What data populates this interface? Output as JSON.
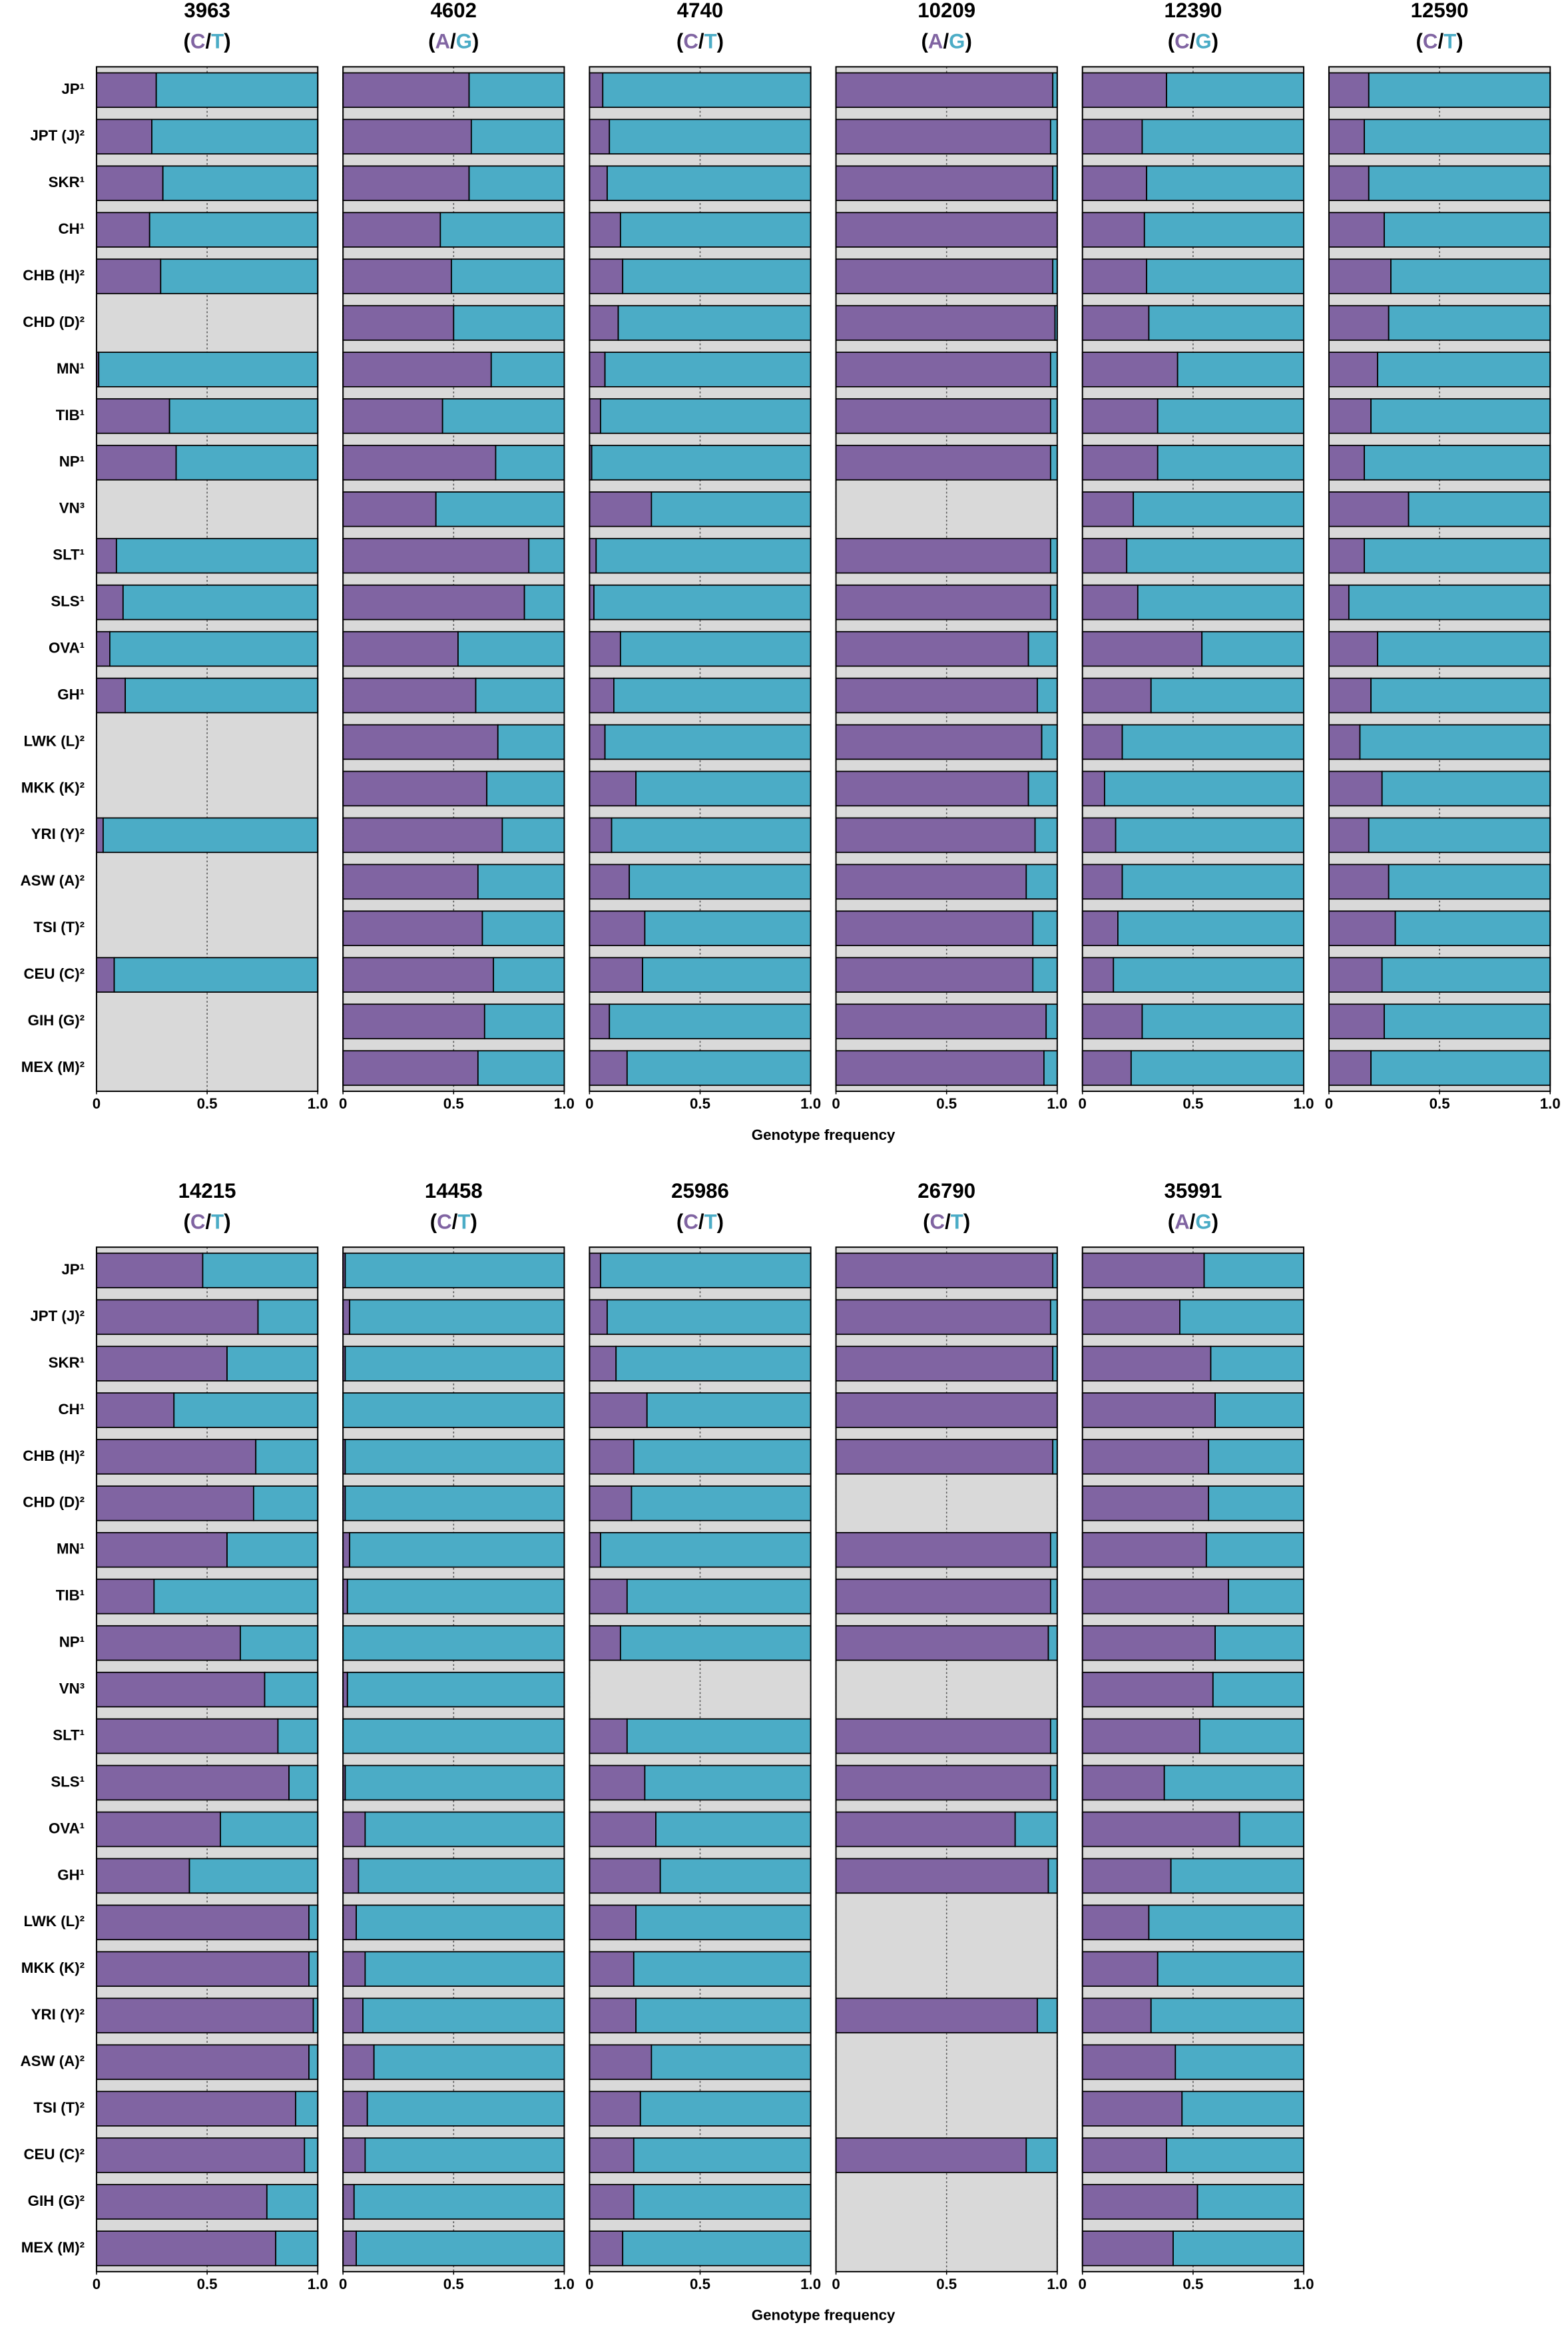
{
  "chart_data": [
    {
      "type": "bar",
      "title": "3963",
      "allele_brackets": [
        "(",
        "/",
        ")"
      ],
      "xlim": [
        0,
        1
      ],
      "xticks": [
        0,
        0.5,
        {
          "value": 1,
          "label": "1.0"
        }
      ],
      "grid": true,
      "background": "#d9d9d9",
      "categories": [
        "JP¹",
        "JPT (J)²",
        "SKR¹",
        "CH¹",
        "CHB (H)²",
        "CHD (D)²",
        "MN¹",
        "TIB¹",
        "NP¹",
        "VN³",
        "SLT¹",
        "SLS¹",
        "OVA¹",
        "GH¹",
        "LWK (L)²",
        "MKK (K)²",
        "YRI (Y)²",
        "ASW (A)²",
        "TSI (T)²",
        "CEU (C)²",
        "GIH (G)²",
        "MEX (M)²"
      ],
      "xlabel": "Genotype frequency",
      "series": [
        {
          "name": "C",
          "color": "#8064a2",
          "values": [
            0.27,
            0.25,
            0.3,
            0.24,
            0.29,
            null,
            0.01,
            0.33,
            0.36,
            null,
            0.09,
            0.12,
            0.06,
            0.13,
            null,
            null,
            0.03,
            null,
            null,
            0.08,
            null,
            null
          ]
        },
        {
          "name": "T",
          "color": "#4bacc6",
          "values": [
            0.73,
            0.75,
            0.7,
            0.76,
            0.71,
            null,
            0.99,
            0.67,
            0.64,
            null,
            0.91,
            0.88,
            0.94,
            0.87,
            null,
            null,
            0.97,
            null,
            null,
            0.92,
            null,
            null
          ]
        }
      ]
    },
    {
      "type": "bar",
      "title": "4602",
      "allele_brackets": [
        "(",
        "/",
        ")"
      ],
      "xlim": [
        0,
        1
      ],
      "xticks": [
        0,
        0.5,
        {
          "value": 1,
          "label": "1.0"
        }
      ],
      "grid": true,
      "background": "#d9d9d9",
      "series": [
        {
          "name": "A",
          "color": "#8064a2",
          "values": [
            0.57,
            0.58,
            0.57,
            0.44,
            0.49,
            0.5,
            0.67,
            0.45,
            0.69,
            0.42,
            0.84,
            0.82,
            0.52,
            0.6,
            0.7,
            0.65,
            0.72,
            0.61,
            0.63,
            0.68,
            0.64,
            0.61
          ]
        },
        {
          "name": "G",
          "color": "#4bacc6",
          "values": [
            0.43,
            0.42,
            0.43,
            0.56,
            0.51,
            0.5,
            0.33,
            0.55,
            0.31,
            0.58,
            0.16,
            0.18,
            0.48,
            0.4,
            0.3,
            0.35,
            0.28,
            0.39,
            0.37,
            0.32,
            0.36,
            0.39
          ]
        }
      ]
    },
    {
      "type": "bar",
      "title": "4740",
      "allele_brackets": [
        "(",
        "/",
        ")"
      ],
      "xlim": [
        0,
        1
      ],
      "xticks": [
        0,
        0.5,
        {
          "value": 1,
          "label": "1.0"
        }
      ],
      "grid": true,
      "background": "#d9d9d9",
      "series": [
        {
          "name": "C",
          "color": "#8064a2",
          "values": [
            0.06,
            0.09,
            0.08,
            0.14,
            0.15,
            0.13,
            0.07,
            0.05,
            0.01,
            0.28,
            0.03,
            0.02,
            0.14,
            0.11,
            0.07,
            0.21,
            0.1,
            0.18,
            0.25,
            0.24,
            0.09,
            0.17
          ]
        },
        {
          "name": "T",
          "color": "#4bacc6",
          "values": [
            0.94,
            0.91,
            0.92,
            0.86,
            0.85,
            0.87,
            0.93,
            0.95,
            0.99,
            0.72,
            0.97,
            0.98,
            0.86,
            0.89,
            0.93,
            0.79,
            0.9,
            0.82,
            0.75,
            0.76,
            0.91,
            0.83
          ]
        }
      ]
    },
    {
      "type": "bar",
      "title": "10209",
      "allele_brackets": [
        "(",
        "/",
        ")"
      ],
      "xlim": [
        0,
        1
      ],
      "xticks": [
        0,
        0.5,
        {
          "value": 1,
          "label": "1.0"
        }
      ],
      "grid": true,
      "background": "#d9d9d9",
      "series": [
        {
          "name": "A",
          "color": "#8064a2",
          "values": [
            0.98,
            0.97,
            0.98,
            1,
            0.98,
            0.99,
            0.97,
            0.97,
            0.97,
            null,
            0.97,
            0.97,
            0.87,
            0.91,
            0.93,
            0.87,
            0.9,
            0.86,
            0.89,
            0.89,
            0.95,
            0.94
          ]
        },
        {
          "name": "G",
          "color": "#4bacc6",
          "values": [
            0.02,
            0.03,
            0.02,
            0,
            0.02,
            0.01,
            0.03,
            0.03,
            0.03,
            null,
            0.03,
            0.03,
            0.13,
            0.09,
            0.07,
            0.13,
            0.1,
            0.14,
            0.11,
            0.11,
            0.05,
            0.06
          ]
        }
      ]
    },
    {
      "type": "bar",
      "title": "12390",
      "allele_brackets": [
        "(",
        "/",
        ")"
      ],
      "xlim": [
        0,
        1
      ],
      "xticks": [
        0,
        0.5,
        {
          "value": 1,
          "label": "1.0"
        }
      ],
      "grid": true,
      "background": "#d9d9d9",
      "series": [
        {
          "name": "C",
          "color": "#8064a2",
          "values": [
            0.38,
            0.27,
            0.29,
            0.28,
            0.29,
            0.3,
            0.43,
            0.34,
            0.34,
            0.23,
            0.2,
            0.25,
            0.54,
            0.31,
            0.18,
            0.1,
            0.15,
            0.18,
            0.16,
            0.14,
            0.27,
            0.22
          ]
        },
        {
          "name": "G",
          "color": "#4bacc6",
          "values": [
            0.62,
            0.73,
            0.71,
            0.72,
            0.71,
            0.7,
            0.57,
            0.66,
            0.66,
            0.77,
            0.8,
            0.75,
            0.46,
            0.69,
            0.82,
            0.9,
            0.85,
            0.82,
            0.84,
            0.86,
            0.73,
            0.78
          ]
        }
      ]
    },
    {
      "type": "bar",
      "title": "12590",
      "allele_brackets": [
        "(",
        "/",
        ")"
      ],
      "xlim": [
        0,
        1
      ],
      "xticks": [
        0,
        0.5,
        {
          "value": 1,
          "label": "1.0"
        }
      ],
      "grid": true,
      "background": "#d9d9d9",
      "series": [
        {
          "name": "C",
          "color": "#8064a2",
          "values": [
            0.18,
            0.16,
            0.18,
            0.25,
            0.28,
            0.27,
            0.22,
            0.19,
            0.16,
            0.36,
            0.16,
            0.09,
            0.22,
            0.19,
            0.14,
            0.24,
            0.18,
            0.27,
            0.3,
            0.24,
            0.25,
            0.19
          ]
        },
        {
          "name": "T",
          "color": "#4bacc6",
          "values": [
            0.82,
            0.84,
            0.82,
            0.75,
            0.72,
            0.73,
            0.78,
            0.81,
            0.84,
            0.64,
            0.84,
            0.91,
            0.78,
            0.81,
            0.86,
            0.76,
            0.82,
            0.73,
            0.7,
            0.76,
            0.75,
            0.81
          ]
        }
      ]
    },
    {
      "type": "bar",
      "title": "14215",
      "allele_brackets": [
        "(",
        "/",
        ")"
      ],
      "xlim": [
        0,
        1
      ],
      "xticks": [
        0,
        0.5,
        {
          "value": 1,
          "label": "1.0"
        }
      ],
      "grid": true,
      "background": "#d9d9d9",
      "categories": [
        "JP¹",
        "JPT (J)²",
        "SKR¹",
        "CH¹",
        "CHB (H)²",
        "CHD (D)²",
        "MN¹",
        "TIB¹",
        "NP¹",
        "VN³",
        "SLT¹",
        "SLS¹",
        "OVA¹",
        "GH¹",
        "LWK (L)²",
        "MKK (K)²",
        "YRI (Y)²",
        "ASW (A)²",
        "TSI (T)²",
        "CEU (C)²",
        "GIH (G)²",
        "MEX (M)²"
      ],
      "xlabel": "Genotype frequency",
      "series": [
        {
          "name": "C",
          "color": "#8064a2",
          "values": [
            0.48,
            0.73,
            0.59,
            0.35,
            0.72,
            0.71,
            0.59,
            0.26,
            0.65,
            0.76,
            0.82,
            0.87,
            0.56,
            0.42,
            0.96,
            0.96,
            0.98,
            0.96,
            0.9,
            0.94,
            0.77,
            0.81
          ]
        },
        {
          "name": "T",
          "color": "#4bacc6",
          "values": [
            0.52,
            0.27,
            0.41,
            0.65,
            0.28,
            0.29,
            0.41,
            0.74,
            0.35,
            0.24,
            0.18,
            0.13,
            0.44,
            0.58,
            0.04,
            0.04,
            0.02,
            0.04,
            0.1,
            0.06,
            0.23,
            0.19
          ]
        }
      ]
    },
    {
      "type": "bar",
      "title": "14458",
      "allele_brackets": [
        "(",
        "/",
        ")"
      ],
      "xlim": [
        0,
        1
      ],
      "xticks": [
        0,
        0.5,
        {
          "value": 1,
          "label": "1.0"
        }
      ],
      "grid": true,
      "background": "#d9d9d9",
      "series": [
        {
          "name": "C",
          "color": "#8064a2",
          "values": [
            0.01,
            0.03,
            0.01,
            0,
            0.01,
            0.01,
            0.03,
            0.02,
            0,
            0.02,
            0,
            0.01,
            0.1,
            0.07,
            0.06,
            0.1,
            0.09,
            0.14,
            0.11,
            0.1,
            0.05,
            0.06
          ]
        },
        {
          "name": "T",
          "color": "#4bacc6",
          "values": [
            0.99,
            0.97,
            0.99,
            1,
            0.99,
            0.99,
            0.97,
            0.98,
            1,
            0.98,
            1,
            0.99,
            0.9,
            0.93,
            0.94,
            0.9,
            0.91,
            0.86,
            0.89,
            0.9,
            0.95,
            0.94
          ]
        }
      ]
    },
    {
      "type": "bar",
      "title": "25986",
      "allele_brackets": [
        "(",
        "/",
        ")"
      ],
      "xlim": [
        0,
        1
      ],
      "xticks": [
        0,
        0.5,
        {
          "value": 1,
          "label": "1.0"
        }
      ],
      "grid": true,
      "background": "#d9d9d9",
      "series": [
        {
          "name": "C",
          "color": "#8064a2",
          "values": [
            0.05,
            0.08,
            0.12,
            0.26,
            0.2,
            0.19,
            0.05,
            0.17,
            0.14,
            null,
            0.17,
            0.25,
            0.3,
            0.32,
            0.21,
            0.2,
            0.21,
            0.28,
            0.23,
            0.2,
            0.2,
            0.15
          ]
        },
        {
          "name": "T",
          "color": "#4bacc6",
          "values": [
            0.95,
            0.92,
            0.88,
            0.74,
            0.8,
            0.81,
            0.95,
            0.83,
            0.86,
            null,
            0.83,
            0.75,
            0.7,
            0.68,
            0.79,
            0.8,
            0.79,
            0.72,
            0.77,
            0.8,
            0.8,
            0.85
          ]
        }
      ]
    },
    {
      "type": "bar",
      "title": "26790",
      "allele_brackets": [
        "(",
        "/",
        ")"
      ],
      "xlim": [
        0,
        1
      ],
      "xticks": [
        0,
        0.5,
        {
          "value": 1,
          "label": "1.0"
        }
      ],
      "grid": true,
      "background": "#d9d9d9",
      "series": [
        {
          "name": "C",
          "color": "#8064a2",
          "values": [
            0.98,
            0.97,
            0.98,
            1,
            0.98,
            null,
            0.97,
            0.97,
            0.96,
            null,
            0.97,
            0.97,
            0.81,
            0.96,
            null,
            null,
            0.91,
            null,
            null,
            0.86,
            null,
            null
          ]
        },
        {
          "name": "T",
          "color": "#4bacc6",
          "values": [
            0.02,
            0.03,
            0.02,
            0,
            0.02,
            null,
            0.03,
            0.03,
            0.04,
            null,
            0.03,
            0.03,
            0.19,
            0.04,
            null,
            null,
            0.09,
            null,
            null,
            0.14,
            null,
            null
          ]
        }
      ]
    },
    {
      "type": "bar",
      "title": "35991",
      "allele_brackets": [
        "(",
        "/",
        ")"
      ],
      "xlim": [
        0,
        1
      ],
      "xticks": [
        0,
        0.5,
        {
          "value": 1,
          "label": "1.0"
        }
      ],
      "grid": true,
      "background": "#d9d9d9",
      "series": [
        {
          "name": "A",
          "color": "#8064a2",
          "values": [
            0.55,
            0.44,
            0.58,
            0.6,
            0.57,
            0.57,
            0.56,
            0.66,
            0.6,
            0.59,
            0.53,
            0.37,
            0.71,
            0.4,
            0.3,
            0.34,
            0.31,
            0.42,
            0.45,
            0.38,
            0.52,
            0.41
          ]
        },
        {
          "name": "G",
          "color": "#4bacc6",
          "values": [
            0.45,
            0.56,
            0.42,
            0.4,
            0.43,
            0.43,
            0.44,
            0.34,
            0.4,
            0.41,
            0.47,
            0.63,
            0.29,
            0.6,
            0.7,
            0.66,
            0.69,
            0.58,
            0.55,
            0.62,
            0.48,
            0.59
          ]
        }
      ]
    }
  ]
}
